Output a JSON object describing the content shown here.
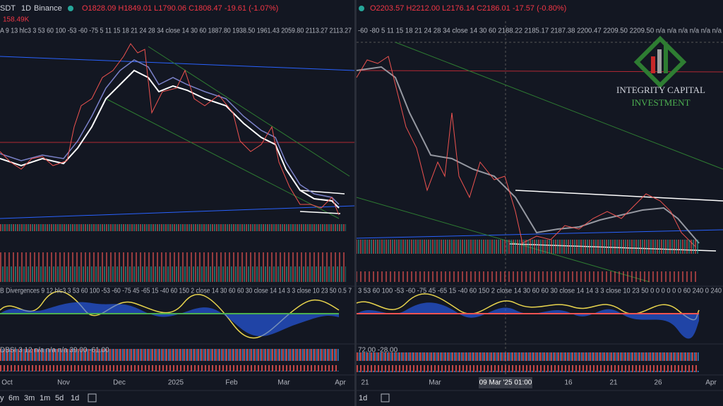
{
  "left_pane": {
    "symbol": "SDT",
    "interval": "1D",
    "exchange": "Binance",
    "ohlc": "O1828.09 H1849.01 L1790.06 C1808.47 -19.61 (-1.07%)",
    "volume": "158.49K",
    "indicator_1": "A 9 13 hlc3 3 53 60 100 -53 -60 -75 5 11 15 18 21 24 28 34 close 14 30 60 1887.80 1938.50 1961.43 2059.80 2113.27 2113.27",
    "indicator_2": "B Divergences 9 12 hlc3 3 53 60 100 -53 -60 -75 45 -65 15 -40 60 150 2 close 14 30 60 60 30 close 14 14 3 3 close 10 23 50 0.5 7",
    "indicator_3": "DBSI 3 12 n/a n/a n/a 39.00 -61.00",
    "x_labels": [
      "Oct",
      "Nov",
      "Dec",
      "2025",
      "Feb",
      "Mar",
      "Apr"
    ],
    "toolbar": [
      "y",
      "6m",
      "3m",
      "1m",
      "5d",
      "1d"
    ]
  },
  "right_pane": {
    "ohlc": "O2203.57 H2212.00 L2176.14 C2186.01 -17.57 (-0.80%)",
    "indicator_1": "-60 -80 5 11 15 18 21 24 28 34 close 14 30 60 2188.22 2185.17 2187.38 2200.47 2209.50 2209.50 n/a n/a n/a n/a n/a n/a",
    "indicator_2": "3 53 60 100 -53 -60 -75 45 -65 15 -40 60 150 2 close 14 30 60 60 30 close 14 14 3 3 close 10 23 50 0 0 0 0 0 0 60 240 0 240",
    "indicator_3": "72.00 -28.00",
    "logo_line_1": "INTEGRITY CAPITAL",
    "logo_line_2": "INVESTMENT",
    "x_labels": [
      "21",
      "Mar",
      "16",
      "21",
      "26",
      "Apr"
    ],
    "crosshair_label": "09 Mar '25  01:00",
    "toolbar": [
      "1d"
    ]
  }
}
